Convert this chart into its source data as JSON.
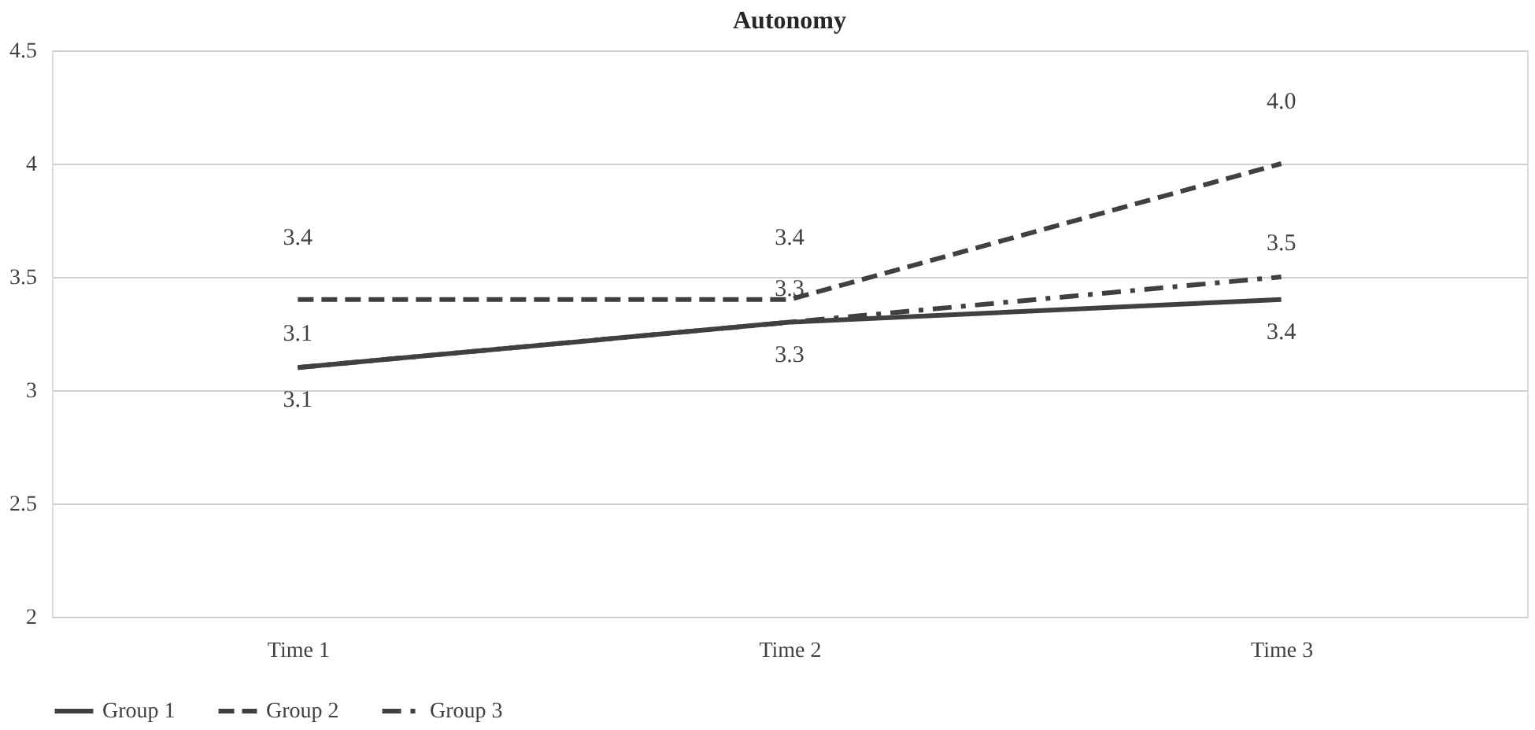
{
  "chart_data": {
    "type": "line",
    "title": "Autonomy",
    "categories": [
      "Time 1",
      "Time 2",
      "Time 3"
    ],
    "series": [
      {
        "name": "Group 1",
        "color": "#404040",
        "values": [
          3.1,
          3.3,
          3.4
        ],
        "value_labels": [
          "3.1",
          "3.3",
          "3.4"
        ],
        "line_style": "solid"
      },
      {
        "name": "Group 2",
        "color": "#404040",
        "values": [
          3.4,
          3.4,
          4.0
        ],
        "value_labels": [
          "3.4",
          "3.4",
          "4.0"
        ],
        "line_style": "dashed"
      },
      {
        "name": "Group 3",
        "color": "#404040",
        "values": [
          3.1,
          3.3,
          3.5
        ],
        "value_labels": [
          "3.1",
          "3.3",
          "3.5"
        ],
        "line_style": "dashdot"
      }
    ],
    "ylim": [
      2,
      4.5
    ],
    "yticks": [
      2,
      2.5,
      3,
      3.5,
      4,
      4.5
    ],
    "grid": "y",
    "legend": "bottom",
    "marker": "none"
  }
}
